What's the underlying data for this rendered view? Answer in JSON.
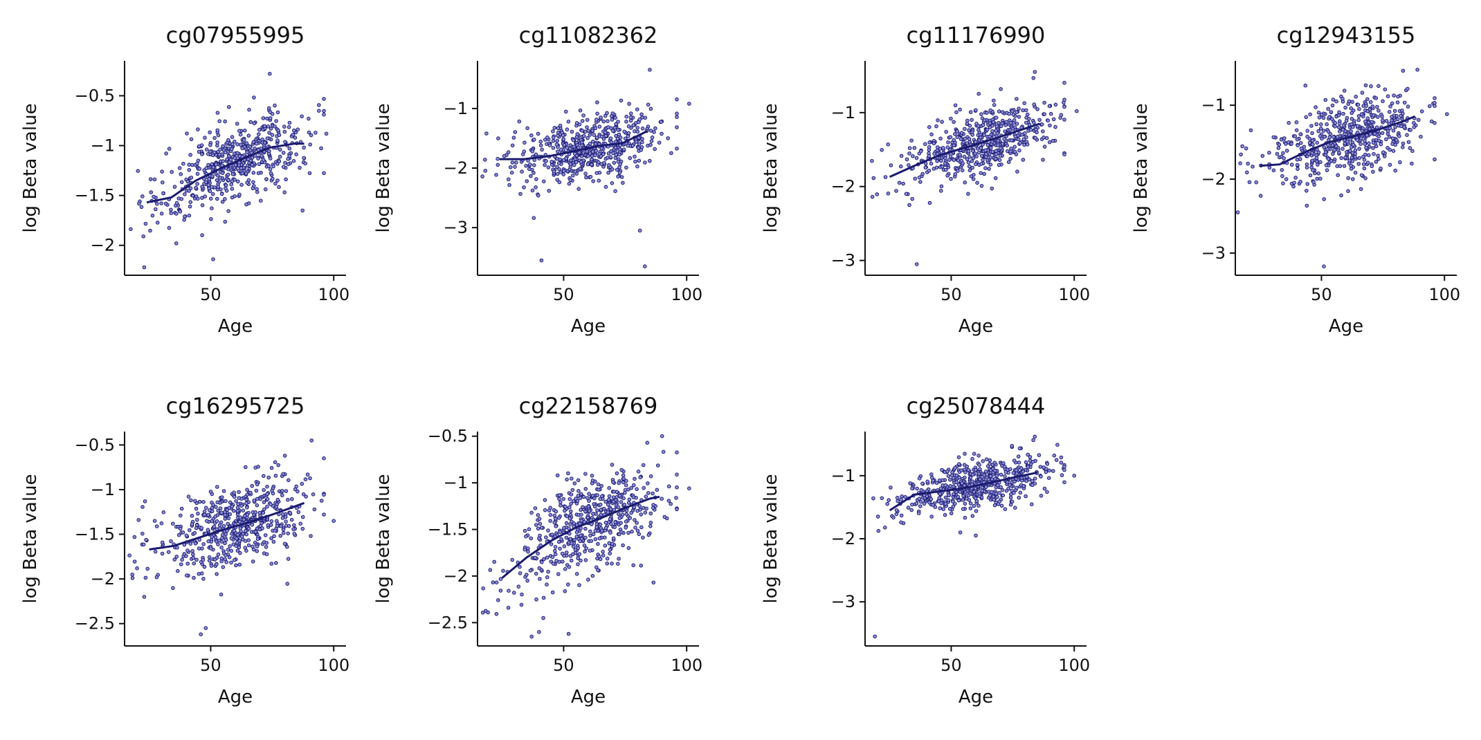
{
  "style": {
    "point_color": "#1a1a6e",
    "point_fill": "#8d8dd9",
    "line_color": "#1a1a6e"
  },
  "chart_data": [
    {
      "type": "scatter",
      "title": "cg07955995",
      "xlabel": "Age",
      "ylabel": "log Beta value",
      "xlim": [
        15,
        105
      ],
      "ylim": [
        -2.3,
        -0.15
      ],
      "xticks": [
        50,
        100
      ],
      "yticks": [
        -2.0,
        -1.5,
        -1.0,
        -0.5
      ],
      "center": [
        62,
        70
      ],
      "slope": 0.013,
      "spread": [
        0.17,
        0.22
      ],
      "trend": {
        "x": [
          24,
          34,
          44,
          54,
          64,
          74,
          84,
          88
        ],
        "y": [
          -1.57,
          -1.52,
          -1.35,
          -1.23,
          -1.12,
          -1.02,
          -0.98,
          -0.98
        ]
      },
      "outliers": {
        "x": [
          23,
          51,
          74,
          97,
          36
        ],
        "y": [
          -2.22,
          -2.14,
          -0.28,
          -0.88,
          -1.98
        ]
      }
    },
    {
      "type": "scatter",
      "title": "cg11082362",
      "xlabel": "Age",
      "ylabel": "log Beta value",
      "xlim": [
        15,
        105
      ],
      "ylim": [
        -3.8,
        -0.2
      ],
      "xticks": [
        50,
        100
      ],
      "yticks": [
        -3,
        -2,
        -1
      ],
      "center": [
        62,
        70
      ],
      "slope": 0.008,
      "spread": [
        0.25,
        0.32
      ],
      "trend": {
        "x": [
          24,
          34,
          44,
          54,
          64,
          74,
          84
        ],
        "y": [
          -1.85,
          -1.85,
          -1.8,
          -1.72,
          -1.63,
          -1.58,
          -1.38
        ]
      },
      "outliers": {
        "x": [
          41,
          83,
          81,
          85,
          101
        ],
        "y": [
          -3.55,
          -3.65,
          -3.05,
          -0.35,
          -0.92
        ]
      }
    },
    {
      "type": "scatter",
      "title": "cg11176990",
      "xlabel": "Age",
      "ylabel": "log Beta value",
      "xlim": [
        15,
        105
      ],
      "ylim": [
        -3.2,
        -0.3
      ],
      "xticks": [
        50,
        100
      ],
      "yticks": [
        -3,
        -2,
        -1
      ],
      "center": [
        62,
        70
      ],
      "slope": 0.012,
      "spread": [
        0.19,
        0.24
      ],
      "trend": {
        "x": [
          25,
          35,
          45,
          55,
          65,
          75,
          86
        ],
        "y": [
          -1.87,
          -1.72,
          -1.58,
          -1.48,
          -1.38,
          -1.27,
          -1.15
        ]
      },
      "outliers": {
        "x": [
          36,
          84,
          101,
          33
        ],
        "y": [
          -3.05,
          -0.45,
          -0.98,
          -2.25
        ]
      }
    },
    {
      "type": "scatter",
      "title": "cg12943155",
      "xlabel": "Age",
      "ylabel": "log Beta value",
      "xlim": [
        15,
        105
      ],
      "ylim": [
        -3.3,
        -0.4
      ],
      "xticks": [
        50,
        100
      ],
      "yticks": [
        -3,
        -2,
        -1
      ],
      "center": [
        62,
        70
      ],
      "slope": 0.011,
      "spread": [
        0.24,
        0.3
      ],
      "trend": {
        "x": [
          25,
          33,
          43,
          53,
          63,
          73,
          83,
          88
        ],
        "y": [
          -1.82,
          -1.8,
          -1.64,
          -1.5,
          -1.42,
          -1.33,
          -1.22,
          -1.15
        ]
      },
      "outliers": {
        "x": [
          51,
          89,
          101,
          16
        ],
        "y": [
          -3.18,
          -0.52,
          -1.12,
          -2.45
        ]
      }
    },
    {
      "type": "scatter",
      "title": "cg16295725",
      "xlabel": "Age",
      "ylabel": "log Beta value",
      "xlim": [
        15,
        105
      ],
      "ylim": [
        -2.75,
        -0.35
      ],
      "xticks": [
        50,
        100
      ],
      "yticks": [
        -2.5,
        -2.0,
        -1.5,
        -1.0,
        -0.5
      ],
      "center": [
        62,
        70
      ],
      "slope": 0.009,
      "spread": [
        0.2,
        0.26
      ],
      "trend": {
        "x": [
          25,
          35,
          45,
          55,
          65,
          75,
          88
        ],
        "y": [
          -1.67,
          -1.63,
          -1.54,
          -1.45,
          -1.37,
          -1.28,
          -1.15
        ]
      },
      "outliers": {
        "x": [
          46,
          48,
          91,
          100,
          23
        ],
        "y": [
          -2.62,
          -2.55,
          -0.45,
          -1.35,
          -2.2
        ]
      }
    },
    {
      "type": "scatter",
      "title": "cg22158769",
      "xlabel": "Age",
      "ylabel": "log Beta value",
      "xlim": [
        15,
        105
      ],
      "ylim": [
        -2.75,
        -0.45
      ],
      "xticks": [
        50,
        100
      ],
      "yticks": [
        -2.5,
        -2.0,
        -1.5,
        -1.0,
        -0.5
      ],
      "center": [
        62,
        70
      ],
      "slope": 0.013,
      "spread": [
        0.21,
        0.27
      ],
      "trend": {
        "x": [
          25,
          35,
          45,
          55,
          65,
          75,
          85,
          89
        ],
        "y": [
          -2.02,
          -1.8,
          -1.62,
          -1.48,
          -1.38,
          -1.27,
          -1.17,
          -1.15
        ]
      },
      "outliers": {
        "x": [
          37,
          40,
          52,
          84,
          101
        ],
        "y": [
          -2.65,
          -2.6,
          -2.62,
          -0.57,
          -1.06
        ]
      }
    },
    {
      "type": "scatter",
      "title": "cg25078444",
      "xlabel": "Age",
      "ylabel": "log Beta value",
      "xlim": [
        15,
        105
      ],
      "ylim": [
        -3.7,
        -0.3
      ],
      "xticks": [
        50,
        100
      ],
      "yticks": [
        -3,
        -2,
        -1
      ],
      "center": [
        62,
        70
      ],
      "slope": 0.009,
      "spread": [
        0.16,
        0.2
      ],
      "trend": {
        "x": [
          25,
          35,
          45,
          55,
          65,
          75,
          85
        ],
        "y": [
          -1.55,
          -1.3,
          -1.25,
          -1.2,
          -1.12,
          -1.03,
          -0.95
        ]
      },
      "outliers": {
        "x": [
          19,
          60,
          100,
          84
        ],
        "y": [
          -3.55,
          -1.95,
          -1.0,
          -0.38
        ]
      }
    }
  ]
}
